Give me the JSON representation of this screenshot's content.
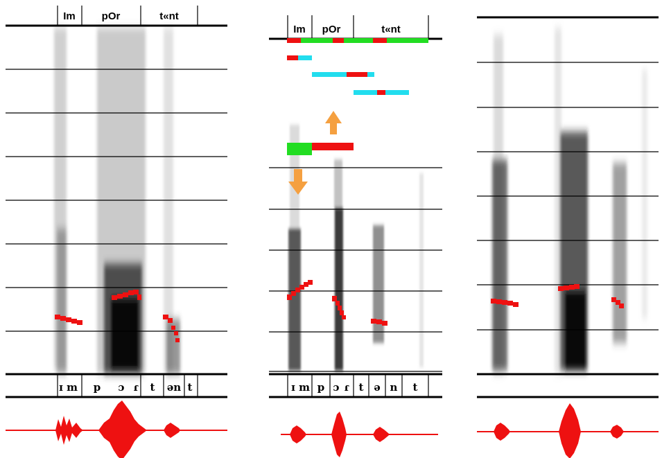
{
  "figure": {
    "panels": [
      {
        "id": "panel-left",
        "syllables": [
          "Im",
          "pOr",
          "t«nt"
        ],
        "phones": [
          "ɪ",
          "m",
          "p",
          "ɔ",
          "ɾ",
          "t",
          "ən",
          "t"
        ]
      },
      {
        "id": "panel-middle",
        "syllables": [
          "Im",
          "pOr",
          "t«nt"
        ],
        "phones": [
          "ɪ",
          "m",
          "p",
          "ɔ",
          "ɾ",
          "t",
          "ə",
          "n",
          "t"
        ]
      },
      {
        "id": "panel-right",
        "syllables": [],
        "phones": []
      }
    ],
    "colors": {
      "pitch": "#ee1111",
      "waveform": "#ee1111",
      "unstressed_bar": "#22dd22",
      "stressed_bar": "#ee1111",
      "syllable_span": "#22ddee",
      "arrow": "#f5a040",
      "spectrogram": "#000000",
      "grid": "#000000"
    }
  }
}
